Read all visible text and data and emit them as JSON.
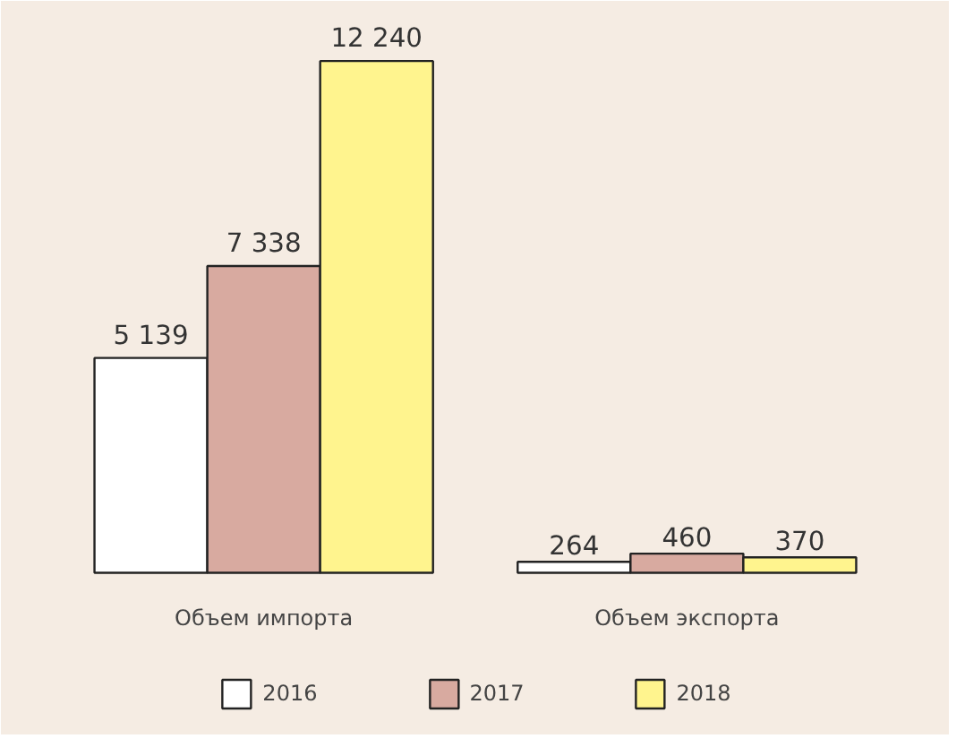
{
  "chart_data": {
    "type": "bar",
    "categories": [
      "Объем импорта",
      "Объем экспорта"
    ],
    "series": [
      {
        "name": "2016",
        "color": "#ffffff",
        "values": [
          5139,
          264
        ],
        "value_labels": [
          "5 139",
          "264"
        ]
      },
      {
        "name": "2017",
        "color": "#d8aaa0",
        "values": [
          7338,
          460
        ],
        "value_labels": [
          "7 338",
          "460"
        ]
      },
      {
        "name": "2018",
        "color": "#fff48e",
        "values": [
          12240,
          370
        ],
        "value_labels": [
          "12 240",
          "370"
        ]
      }
    ],
    "legend": "bottom"
  }
}
